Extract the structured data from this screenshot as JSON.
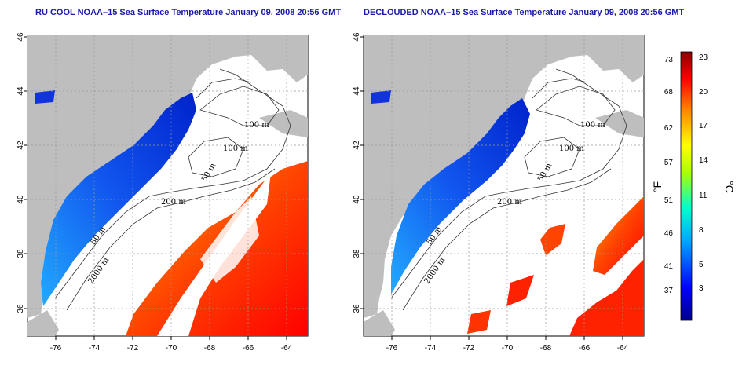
{
  "left_panel": {
    "title": "RU COOL NOAA–15 Sea Surface Temperature January 09, 2008 20:56 GMT",
    "contour_labels": [
      "100 m",
      "100 m",
      "50 m",
      "200 m",
      "50 m",
      "2000 m"
    ]
  },
  "right_panel": {
    "title": "DECLOUDED NOAA–15 Sea Surface Temperature January 09, 2008 20:56 GMT",
    "contour_labels": [
      "100 m",
      "100 m",
      "50 m",
      "200 m",
      "50 m",
      "2000 m"
    ]
  },
  "axes": {
    "lon_ticks": [
      "-76",
      "-74",
      "-72",
      "-70",
      "-68",
      "-66",
      "-64"
    ],
    "lat_ticks": [
      "36",
      "38",
      "40",
      "42",
      "44",
      "46"
    ]
  },
  "colorbar": {
    "fahrenheit_label": "°F",
    "celsius_label": "°C",
    "fahrenheit_ticks": [
      "73",
      "68",
      "62",
      "57",
      "51",
      "46",
      "41",
      "37"
    ],
    "celsius_ticks": [
      "23",
      "20",
      "17",
      "14",
      "11",
      "8",
      "5",
      "3"
    ]
  },
  "colors": {
    "land": "#bebebe",
    "cloud": "#ffffff",
    "title": "#1a1aa6"
  }
}
